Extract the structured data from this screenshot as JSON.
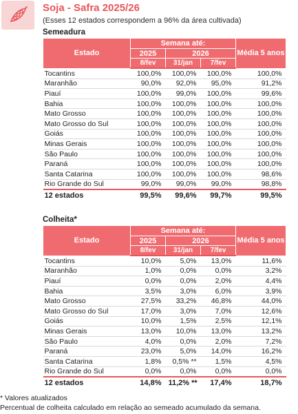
{
  "header": {
    "title": "Soja - Safra 2025/26",
    "subtitle": "(Esses 12 estados correspondem a 96% da área cultivada)"
  },
  "columns": {
    "estado": "Estado",
    "semana": "Semana até:",
    "year_2025": "2025",
    "year_2026": "2026",
    "media": "Média 5 anos"
  },
  "semeadura": {
    "title": "Semeadura",
    "dates": [
      "8/fev",
      "31/jan",
      "7/fev"
    ],
    "rows": [
      {
        "estado": "Tocantins",
        "v2025": "100,0%",
        "v2026a": "100,0%",
        "v2026b": "100,0%",
        "media": "100,0%"
      },
      {
        "estado": "Maranhão",
        "v2025": "90,0%",
        "v2026a": "92,0%",
        "v2026b": "95,0%",
        "media": "91,2%"
      },
      {
        "estado": "Piauí",
        "v2025": "100,0%",
        "v2026a": "99,0%",
        "v2026b": "100,0%",
        "media": "99,6%"
      },
      {
        "estado": "Bahia",
        "v2025": "100,0%",
        "v2026a": "100,0%",
        "v2026b": "100,0%",
        "media": "100,0%"
      },
      {
        "estado": "Mato Grosso",
        "v2025": "100,0%",
        "v2026a": "100,0%",
        "v2026b": "100,0%",
        "media": "100,0%"
      },
      {
        "estado": "Mato Grosso do Sul",
        "v2025": "100,0%",
        "v2026a": "100,0%",
        "v2026b": "100,0%",
        "media": "100,0%"
      },
      {
        "estado": "Goiás",
        "v2025": "100,0%",
        "v2026a": "100,0%",
        "v2026b": "100,0%",
        "media": "100,0%"
      },
      {
        "estado": "Minas Gerais",
        "v2025": "100,0%",
        "v2026a": "100,0%",
        "v2026b": "100,0%",
        "media": "100,0%"
      },
      {
        "estado": "São Paulo",
        "v2025": "100,0%",
        "v2026a": "100,0%",
        "v2026b": "100,0%",
        "media": "100,0%"
      },
      {
        "estado": "Paraná",
        "v2025": "100,0%",
        "v2026a": "100,0%",
        "v2026b": "100,0%",
        "media": "100,0%"
      },
      {
        "estado": "Santa Catarina",
        "v2025": "100,0%",
        "v2026a": "100,0%",
        "v2026b": "100,0%",
        "media": "98,6%"
      },
      {
        "estado": "Rio Grande do Sul",
        "v2025": "99,0%",
        "v2026a": "99,0%",
        "v2026b": "99,0%",
        "media": "98,8%"
      }
    ],
    "total": {
      "estado": "12 estados",
      "v2025": "99,5%",
      "v2026a": "99,6%",
      "v2026b": "99,7%",
      "media": "99,5%"
    }
  },
  "colheita": {
    "title": "Colheita*",
    "dates": [
      "8/fev",
      "31/jan",
      "7/fev"
    ],
    "rows": [
      {
        "estado": "Tocantins",
        "v2025": "10,0%",
        "v2026a": "5,0%",
        "v2026b": "13,0%",
        "media": "11,6%"
      },
      {
        "estado": "Maranhão",
        "v2025": "1,0%",
        "v2026a": "0,0%",
        "v2026b": "0,0%",
        "media": "3,2%"
      },
      {
        "estado": "Piauí",
        "v2025": "0,0%",
        "v2026a": "0,0%",
        "v2026b": "2,0%",
        "media": "4,4%"
      },
      {
        "estado": "Bahia",
        "v2025": "3,5%",
        "v2026a": "3,0%",
        "v2026b": "6,0%",
        "media": "3,9%"
      },
      {
        "estado": "Mato Grosso",
        "v2025": "27,5%",
        "v2026a": "33,2%",
        "v2026b": "46,8%",
        "media": "44,0%"
      },
      {
        "estado": "Mato Grosso do Sul",
        "v2025": "17,0%",
        "v2026a": "3,0%",
        "v2026b": "7,0%",
        "media": "12,6%"
      },
      {
        "estado": "Goiás",
        "v2025": "10,0%",
        "v2026a": "1,5%",
        "v2026b": "2,5%",
        "media": "12,1%"
      },
      {
        "estado": "Minas Gerais",
        "v2025": "13,0%",
        "v2026a": "10,0%",
        "v2026b": "13,0%",
        "media": "13,2%"
      },
      {
        "estado": "São Paulo",
        "v2025": "4,0%",
        "v2026a": "0,0%",
        "v2026b": "2,0%",
        "media": "7,2%"
      },
      {
        "estado": "Paraná",
        "v2025": "23,0%",
        "v2026a": "5,0%",
        "v2026b": "14,0%",
        "media": "16,2%"
      },
      {
        "estado": "Santa Catarina",
        "v2025": "1,8%",
        "v2026a": "0,5% **",
        "v2026b": "1,5%",
        "media": "4,5%"
      },
      {
        "estado": "Rio Grande do Sul",
        "v2025": "0,0%",
        "v2026a": "0,0%",
        "v2026b": "0,0%",
        "media": "0,0%"
      }
    ],
    "total": {
      "estado": "12 estados",
      "v2025": "14,8%",
      "v2026a": "11,2% **",
      "v2026b": "17,4%",
      "media": "18,7%"
    }
  },
  "footnotes": {
    "line1": "* Valores atualizados",
    "line2": "Percentual de colheita calculado em relação ao semeado acumulado da semana."
  },
  "colors": {
    "accent": "#e8555a",
    "header_bg": "#f06b6f",
    "logo_bg": "#f7d6d5"
  },
  "icons": {
    "logo": "soybean-pod-icon"
  }
}
